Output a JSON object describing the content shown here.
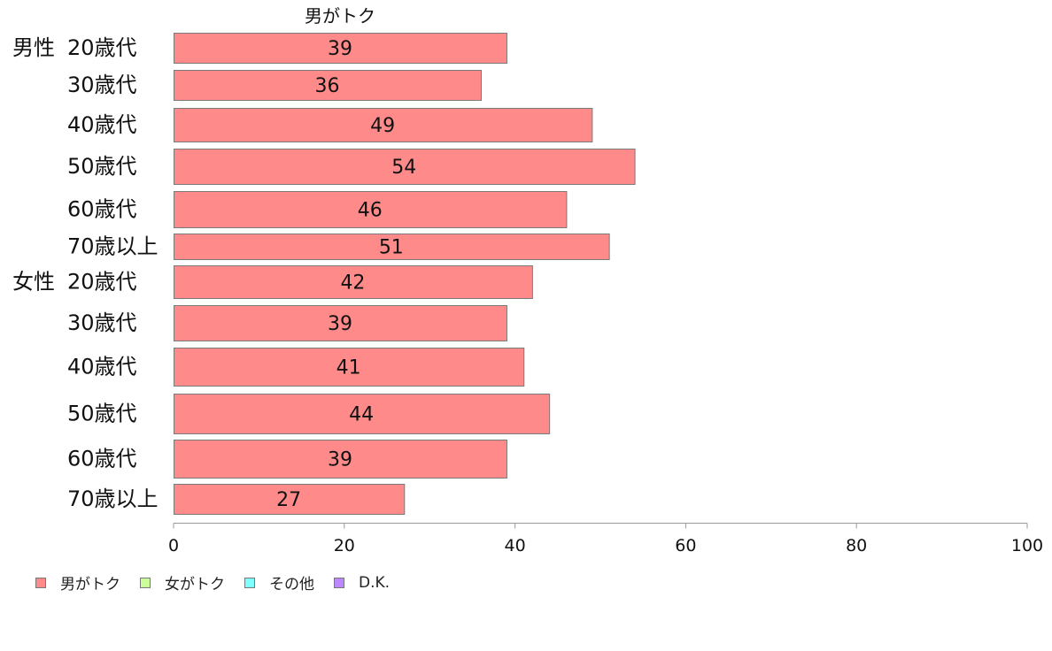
{
  "chart_data": {
    "type": "bar",
    "orientation": "horizontal",
    "title": "男がトク",
    "groups": [
      {
        "label": "男性",
        "start_index": 0
      },
      {
        "label": "女性",
        "start_index": 6
      }
    ],
    "categories": [
      "20歳代",
      "30歳代",
      "40歳代",
      "50歳代",
      "60歳代",
      "70歳以上",
      "20歳代",
      "30歳代",
      "40歳代",
      "50歳代",
      "60歳代",
      "70歳以上"
    ],
    "series": [
      {
        "name": "男がトク",
        "color": "#ff8a8a",
        "values": [
          39,
          36,
          49,
          54,
          46,
          51,
          42,
          39,
          41,
          44,
          39,
          27
        ]
      }
    ],
    "xlim": [
      0,
      100
    ],
    "xticks": [
      0,
      20,
      40,
      60,
      80,
      100
    ],
    "grid": false,
    "legend_position": "bottom-left"
  },
  "legend": [
    {
      "label": "男がトク",
      "color": "#ff8a8a"
    },
    {
      "label": "女がトク",
      "color": "#ccff99"
    },
    {
      "label": "その他",
      "color": "#80ffff"
    },
    {
      "label": "D.K.",
      "color": "#bb88ff"
    }
  ]
}
